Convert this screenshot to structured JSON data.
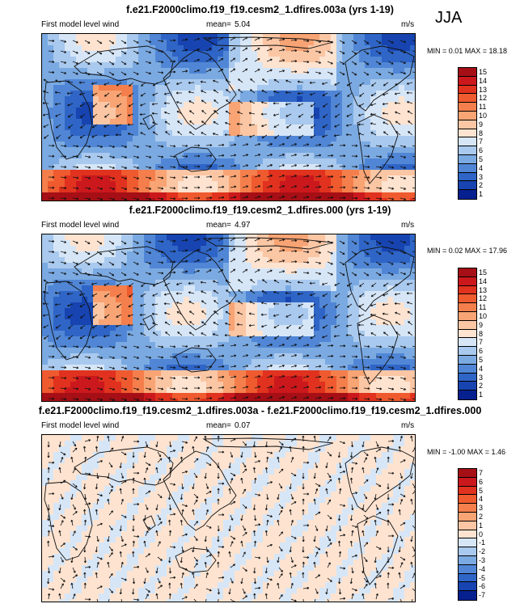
{
  "season": "JJA",
  "panels": [
    {
      "title": "f.e21.F2000climo.f19_f19.cesm2_1.dfires.003a (yrs 1-19)",
      "variable": "First model level wind",
      "mean_label": "mean=",
      "mean_value": "5.04",
      "units": "m/s",
      "minmax": "MIN =  0.01 MAX =  18.18",
      "levels": [
        "15",
        "14",
        "13",
        "12",
        "11",
        "10",
        "9",
        "8",
        "7",
        "6",
        "5",
        "4",
        "3",
        "2",
        "1"
      ],
      "colors": [
        "#a50f15",
        "#cb181d",
        "#e0321e",
        "#ef5a2f",
        "#f57f4c",
        "#f8a474",
        "#fbc6a4",
        "#fde3d0",
        "#d6e6f7",
        "#a9c9ee",
        "#7baae2",
        "#5086d5",
        "#2f65c6",
        "#1744b0",
        "#07208f"
      ],
      "kind": "full"
    },
    {
      "title": "f.e21.F2000climo.f19_f19.cesm2_1.dfires.000 (yrs 1-19)",
      "variable": "First model level wind",
      "mean_label": "mean=",
      "mean_value": "4.97",
      "units": "m/s",
      "minmax": "MIN =  0.02 MAX =  17.96",
      "levels": [
        "15",
        "14",
        "13",
        "12",
        "11",
        "10",
        "9",
        "8",
        "7",
        "6",
        "5",
        "4",
        "3",
        "2",
        "1"
      ],
      "colors": [
        "#a50f15",
        "#cb181d",
        "#e0321e",
        "#ef5a2f",
        "#f57f4c",
        "#f8a474",
        "#fbc6a4",
        "#fde3d0",
        "#d6e6f7",
        "#a9c9ee",
        "#7baae2",
        "#5086d5",
        "#2f65c6",
        "#1744b0",
        "#07208f"
      ],
      "kind": "full"
    },
    {
      "title": "f.e21.F2000climo.f19_f19.cesm2_1.dfires.003a - f.e21.F2000climo.f19_f19.cesm2_1.dfires.000",
      "variable": "First model level wind",
      "mean_label": "mean=",
      "mean_value": "0.07",
      "units": "m/s",
      "minmax": "MIN = -1.00 MAX =  1.46",
      "levels": [
        "7",
        "6",
        "5",
        "4",
        "3",
        "2",
        "1",
        "0",
        "-1",
        "-2",
        "-3",
        "-4",
        "-5",
        "-6",
        "-7"
      ],
      "colors": [
        "#a50f15",
        "#cb181d",
        "#e0321e",
        "#ef5a2f",
        "#f57f4c",
        "#f8a474",
        "#fbc6a4",
        "#fde3d0",
        "#d6e6f7",
        "#a9c9ee",
        "#7baae2",
        "#5086d5",
        "#2f65c6",
        "#1744b0",
        "#07208f"
      ],
      "kind": "diff"
    }
  ]
}
